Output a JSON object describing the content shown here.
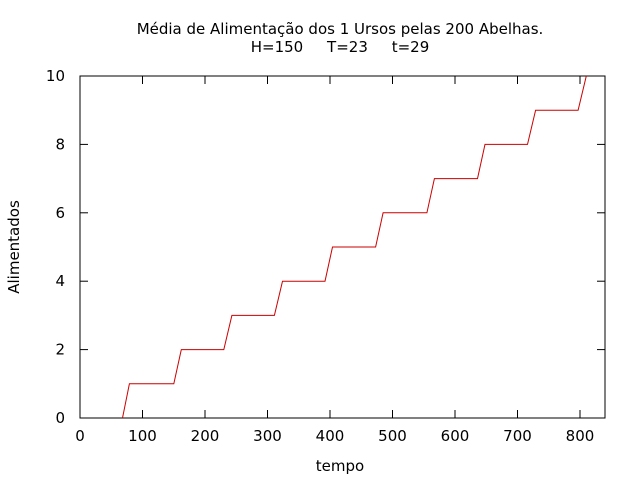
{
  "chart_data": {
    "type": "line",
    "title": "Média de Alimentação dos 1 Ursos pelas 200 Abelhas.",
    "subtitle": "H=150     T=23     t=29",
    "xlabel": "tempo",
    "ylabel": "Alimentados",
    "xlim": [
      0,
      840
    ],
    "ylim": [
      0,
      10
    ],
    "x_ticks": [
      0,
      100,
      200,
      300,
      400,
      500,
      600,
      700,
      800
    ],
    "y_ticks": [
      0,
      2,
      4,
      6,
      8,
      10
    ],
    "grid": false,
    "legend": "none",
    "series": [
      {
        "color": "#cc0000",
        "x": [
          68,
          79,
          150,
          162,
          230,
          243,
          311,
          324,
          392,
          404,
          473,
          485,
          555,
          567,
          636,
          648,
          716,
          729,
          797,
          810
        ],
        "y": [
          0,
          1,
          1,
          2,
          2,
          3,
          3,
          4,
          4,
          5,
          5,
          6,
          6,
          7,
          7,
          8,
          8,
          9,
          9,
          10
        ]
      }
    ]
  }
}
